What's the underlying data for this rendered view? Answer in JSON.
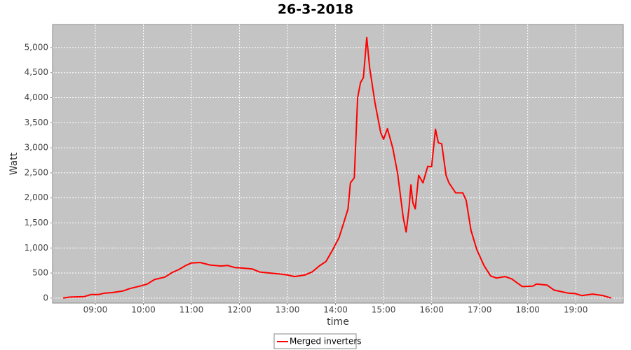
{
  "chart_data": {
    "type": "line",
    "title": "26-3-2018",
    "x_label": "time",
    "y_label": "Watt",
    "x": [
      8.33,
      8.47,
      8.77,
      8.91,
      9.06,
      9.2,
      9.35,
      9.57,
      9.72,
      9.93,
      10.08,
      10.23,
      10.45,
      10.6,
      10.74,
      10.88,
      11.0,
      11.18,
      11.39,
      11.61,
      11.76,
      11.9,
      12.05,
      12.27,
      12.42,
      12.64,
      12.85,
      13.0,
      13.15,
      13.36,
      13.51,
      13.66,
      13.8,
      13.95,
      14.07,
      14.17,
      14.26,
      14.31,
      14.39,
      14.46,
      14.52,
      14.58,
      14.65,
      14.71,
      14.82,
      14.94,
      15.0,
      15.08,
      15.19,
      15.29,
      15.41,
      15.47,
      15.53,
      15.57,
      15.61,
      15.66,
      15.73,
      15.82,
      15.92,
      16.0,
      16.08,
      16.14,
      16.21,
      16.3,
      16.36,
      16.5,
      16.65,
      16.72,
      16.82,
      16.94,
      17.09,
      17.23,
      17.35,
      17.53,
      17.67,
      17.89,
      18.11,
      18.18,
      18.4,
      18.55,
      18.69,
      18.84,
      18.99,
      19.13,
      19.35,
      19.57,
      19.74
    ],
    "series": [
      {
        "name": "Merged inverters",
        "color": "#ff0000",
        "values": [
          0,
          20,
          30,
          70,
          70,
          100,
          110,
          140,
          190,
          240,
          280,
          370,
          420,
          510,
          570,
          650,
          700,
          710,
          660,
          640,
          650,
          610,
          600,
          580,
          520,
          500,
          480,
          460,
          430,
          460,
          520,
          640,
          730,
          980,
          1200,
          1500,
          1780,
          2300,
          2400,
          4000,
          4300,
          4400,
          5200,
          4600,
          3900,
          3300,
          3170,
          3380,
          3000,
          2500,
          1600,
          1320,
          1800,
          2260,
          1900,
          1780,
          2450,
          2300,
          2630,
          2620,
          3370,
          3100,
          3080,
          2450,
          2300,
          2100,
          2100,
          1950,
          1350,
          970,
          650,
          440,
          400,
          430,
          380,
          230,
          240,
          280,
          260,
          160,
          130,
          100,
          90,
          50,
          80,
          50,
          0
        ]
      }
    ],
    "xlim": [
      8.11,
      19.99
    ],
    "ylim": [
      -100,
      5460
    ],
    "xticks": [
      {
        "value": 9,
        "label": "09:00"
      },
      {
        "value": 10,
        "label": "10:00"
      },
      {
        "value": 11,
        "label": "11:00"
      },
      {
        "value": 12,
        "label": "12:00"
      },
      {
        "value": 13,
        "label": "13:00"
      },
      {
        "value": 14,
        "label": "14:00"
      },
      {
        "value": 15,
        "label": "15:00"
      },
      {
        "value": 16,
        "label": "16:00"
      },
      {
        "value": 17,
        "label": "17:00"
      },
      {
        "value": 18,
        "label": "18:00"
      },
      {
        "value": 19,
        "label": "19:00"
      }
    ],
    "yticks": [
      0,
      500,
      {
        "value": 1000,
        "label": "1,000"
      },
      {
        "value": 1500,
        "label": "1,500"
      },
      {
        "value": 2000,
        "label": "2,000"
      },
      {
        "value": 2500,
        "label": "2,500"
      },
      {
        "value": 3000,
        "label": "3,000"
      },
      {
        "value": 3500,
        "label": "3,500"
      },
      {
        "value": 4000,
        "label": "4,000"
      },
      {
        "value": 4500,
        "label": "4,500"
      },
      {
        "value": 5000,
        "label": "5,000"
      }
    ],
    "grid": true,
    "legend": "bottom"
  }
}
